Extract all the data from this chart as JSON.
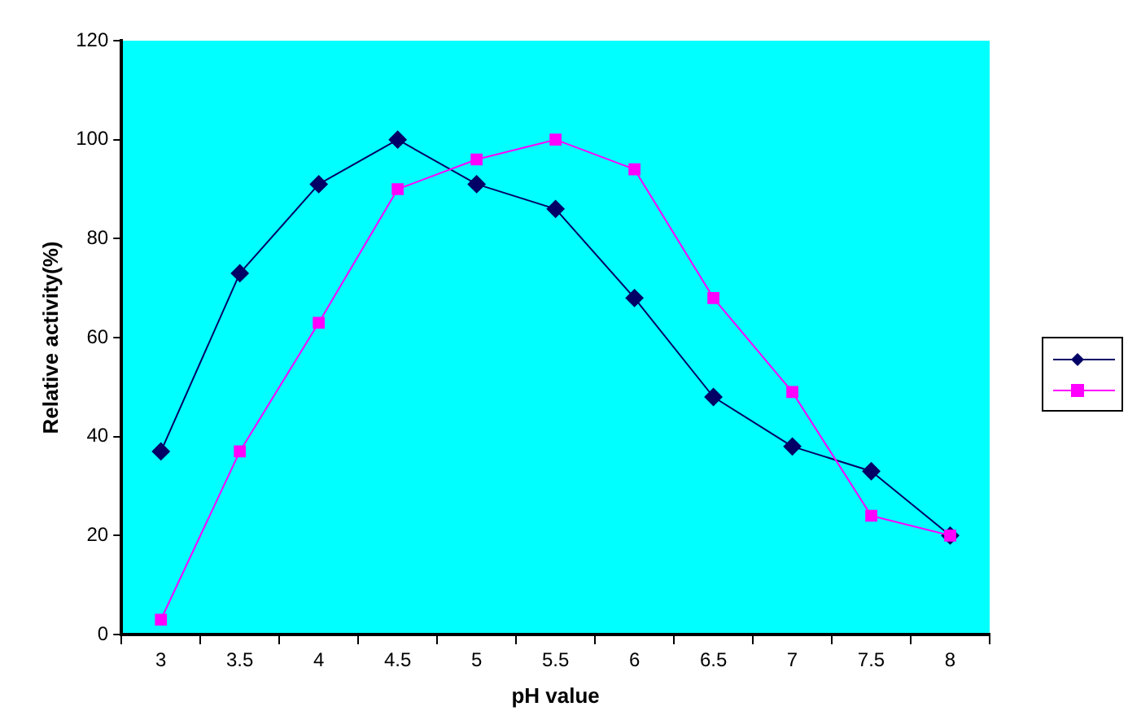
{
  "chart_data": {
    "type": "line",
    "xlabel": "pH value",
    "ylabel": "Relative activity(%)",
    "categories": [
      "3",
      "3.5",
      "4",
      "4.5",
      "5",
      "5.5",
      "6",
      "6.5",
      "7",
      "7.5",
      "8"
    ],
    "series": [
      {
        "color": "#000066",
        "marker": "diamond",
        "values": [
          37,
          73,
          91,
          100,
          91,
          86,
          68,
          48,
          38,
          33,
          20
        ]
      },
      {
        "color": "#ff00ff",
        "marker": "square",
        "values": [
          3,
          37,
          63,
          90,
          96,
          100,
          94,
          68,
          49,
          24,
          20
        ]
      }
    ],
    "ylim": [
      0,
      120
    ],
    "yticks": [
      0,
      20,
      40,
      60,
      80,
      100,
      120
    ],
    "grid": false,
    "line_style": "solid"
  }
}
